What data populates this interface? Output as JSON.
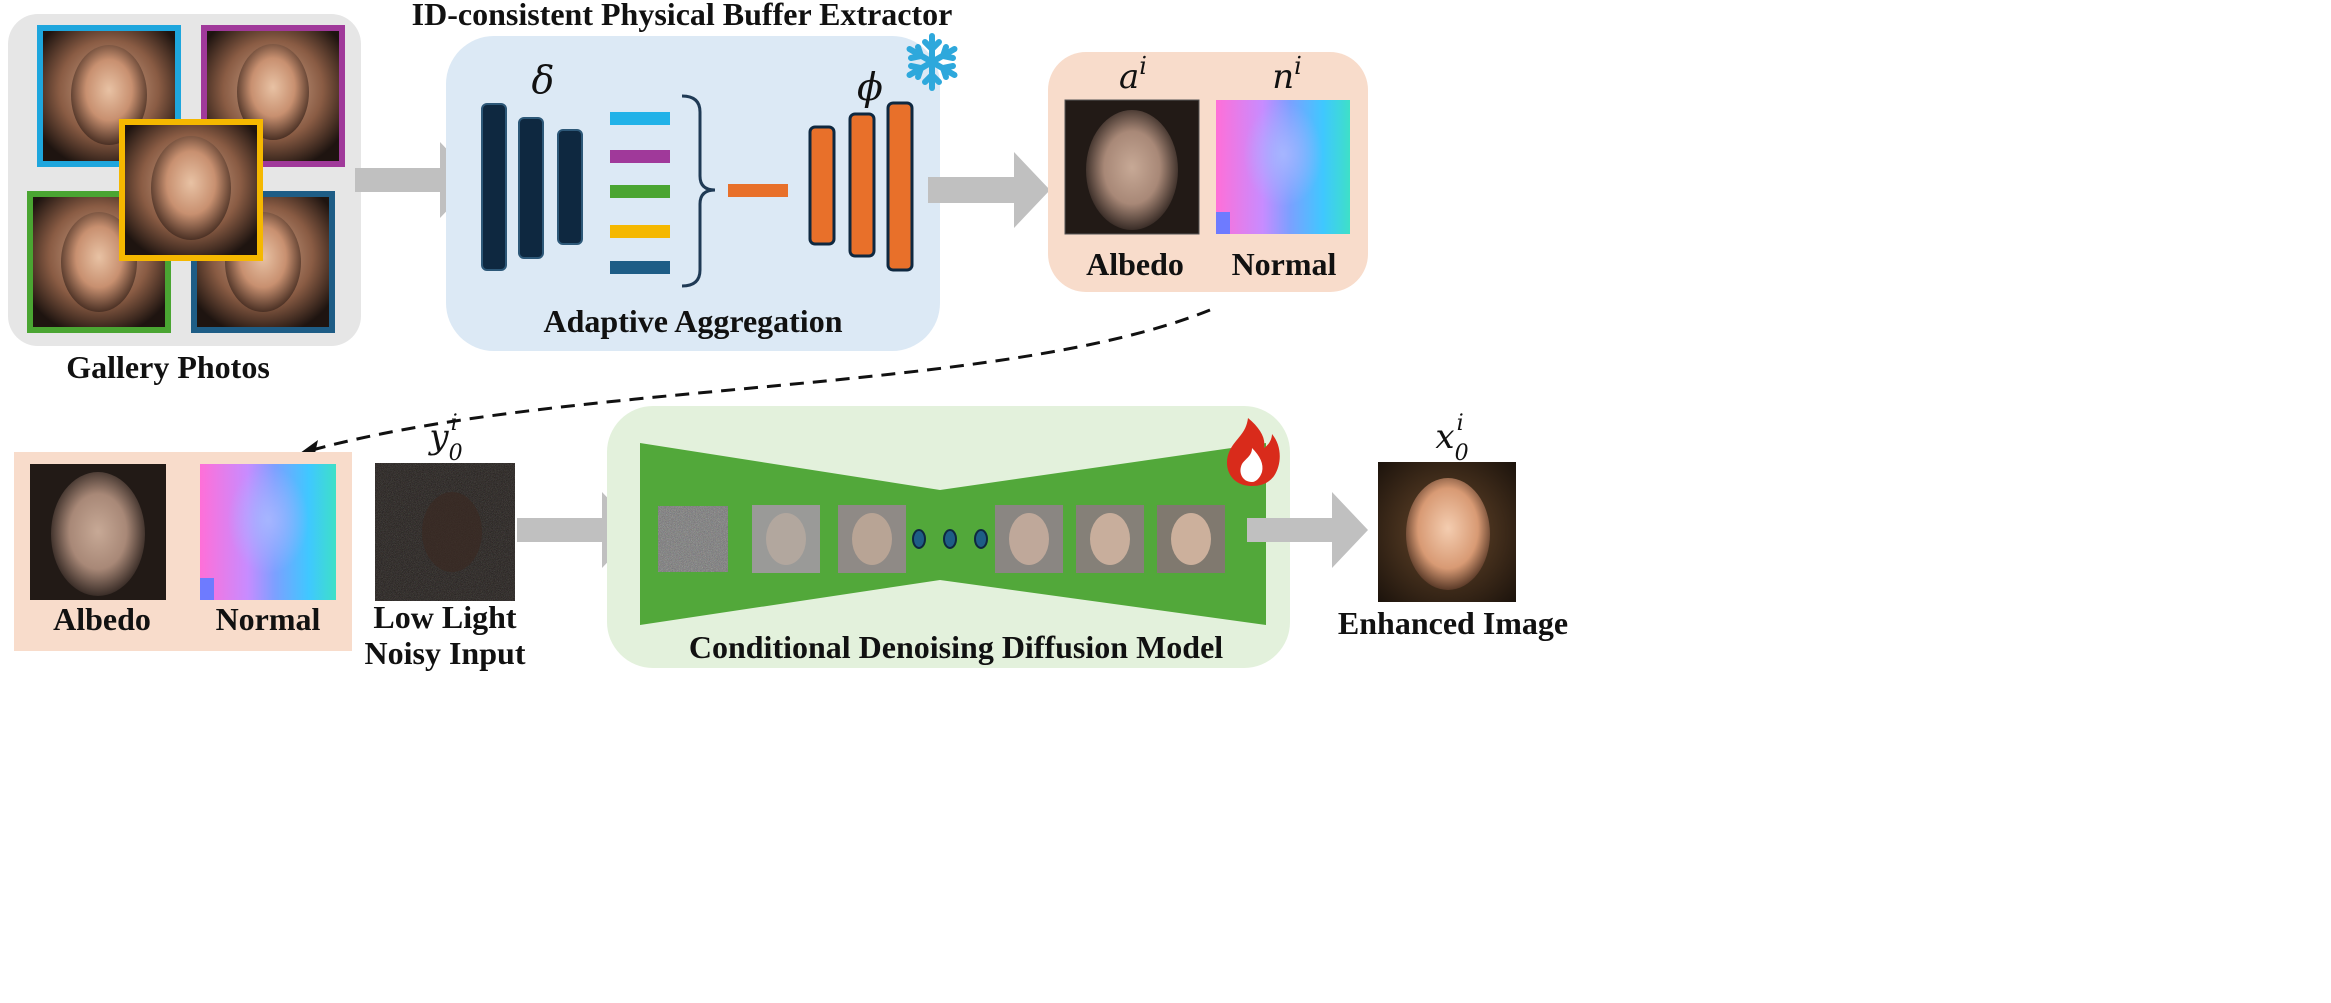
{
  "top": {
    "title": "ID-consistent Physical Buffer Extractor",
    "gallery_label": "Gallery Photos",
    "encoder_symbol": "δ",
    "decoder_symbol": "ϕ",
    "aggregation_label": "Adaptive Aggregation",
    "albedo_symbol": "a",
    "normal_symbol": "n",
    "superscript_i": "i",
    "albedo_label": "Albedo",
    "normal_label": "Normal"
  },
  "bottom": {
    "albedo_label": "Albedo",
    "normal_label": "Normal",
    "input_symbol": "y",
    "input_sub": "0",
    "input_sup": "i",
    "input_label_line1": "Low Light",
    "input_label_line2": "Noisy Input",
    "diffusion_label": "Conditional Denoising Diffusion Model",
    "output_symbol": "x",
    "output_sub": "0",
    "output_sup": "i",
    "output_label": "Enhanced Image"
  },
  "colors": {
    "gallery_frames": [
      "#1ea6dd",
      "#a0399a",
      "#4aa532",
      "#f5b800",
      "#1e5d86"
    ],
    "feature_bars": [
      "#22b2e8",
      "#a0399a",
      "#4aa532",
      "#f5b800",
      "#1e5d86"
    ],
    "encoder": "#0e2840",
    "decoder": "#e8702a",
    "extractor_bg": "#dce9f5",
    "buffer_bg": "#f8dccb",
    "diffusion_bg": "#e3f1dc",
    "diffusion_green": "#52a83a",
    "arrow_gray": "#c0c0c0"
  },
  "icons": [
    "snowflake-icon",
    "flame-icon"
  ]
}
